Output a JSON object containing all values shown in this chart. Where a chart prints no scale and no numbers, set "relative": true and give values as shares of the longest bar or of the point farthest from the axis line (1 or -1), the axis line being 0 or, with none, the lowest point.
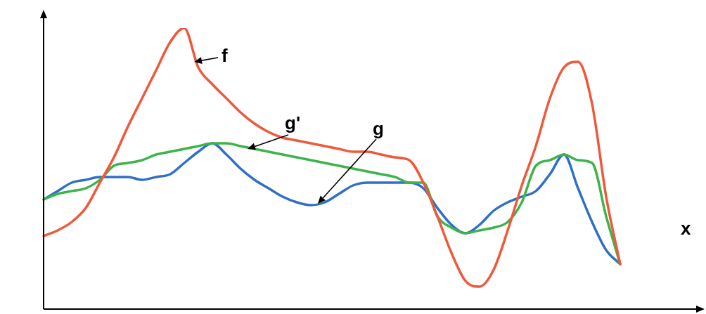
{
  "chart_data": {
    "type": "line",
    "relative": true,
    "xlabel": "x",
    "legend": false,
    "marker": "none",
    "line_style": "solid",
    "categories": [
      null,
      null,
      null,
      null,
      null,
      null,
      null,
      null,
      null,
      null,
      null,
      null,
      null,
      null,
      null,
      null,
      null,
      null,
      null,
      null,
      null,
      null,
      null,
      null,
      null,
      null,
      null,
      null,
      null,
      null,
      null,
      null,
      null,
      null,
      null,
      null,
      null,
      null,
      null,
      null,
      null,
      null
    ],
    "series": [
      {
        "color": "#f0583a",
        "values": [
          0.26,
          0.28,
          0.31,
          0.36,
          0.45,
          0.54,
          0.65,
          0.75,
          0.85,
          0.95,
          1.0,
          0.86,
          0.8,
          0.75,
          0.7,
          0.66,
          0.63,
          0.61,
          0.6,
          0.59,
          0.58,
          0.57,
          0.56,
          0.56,
          0.55,
          0.54,
          0.53,
          0.45,
          0.33,
          0.2,
          0.1,
          0.08,
          0.14,
          0.28,
          0.44,
          0.58,
          0.75,
          0.86,
          0.88,
          0.73,
          0.4,
          0.16
        ]
      },
      {
        "color": "#3cb44a",
        "values": [
          0.39,
          0.41,
          0.42,
          0.43,
          0.46,
          0.51,
          0.52,
          0.53,
          0.55,
          0.56,
          0.57,
          0.58,
          0.59,
          0.59,
          0.58,
          0.57,
          0.56,
          0.55,
          0.54,
          0.53,
          0.52,
          0.51,
          0.5,
          0.49,
          0.48,
          0.47,
          0.45,
          0.45,
          0.33,
          0.29,
          0.27,
          0.28,
          0.29,
          0.31,
          0.38,
          0.51,
          0.53,
          0.55,
          0.53,
          0.52,
          0.33,
          0.16
        ]
      },
      {
        "color": "#2f6fc8",
        "values": [
          0.39,
          0.42,
          0.45,
          0.46,
          0.47,
          0.47,
          0.47,
          0.46,
          0.47,
          0.48,
          0.52,
          0.56,
          0.59,
          0.55,
          0.5,
          0.46,
          0.43,
          0.4,
          0.38,
          0.37,
          0.38,
          0.41,
          0.44,
          0.45,
          0.45,
          0.45,
          0.45,
          0.43,
          0.36,
          0.3,
          0.27,
          0.3,
          0.35,
          0.38,
          0.4,
          0.42,
          0.48,
          0.55,
          0.43,
          0.31,
          0.21,
          0.16
        ]
      }
    ],
    "annotations": [
      "f",
      "g'",
      "g"
    ]
  }
}
